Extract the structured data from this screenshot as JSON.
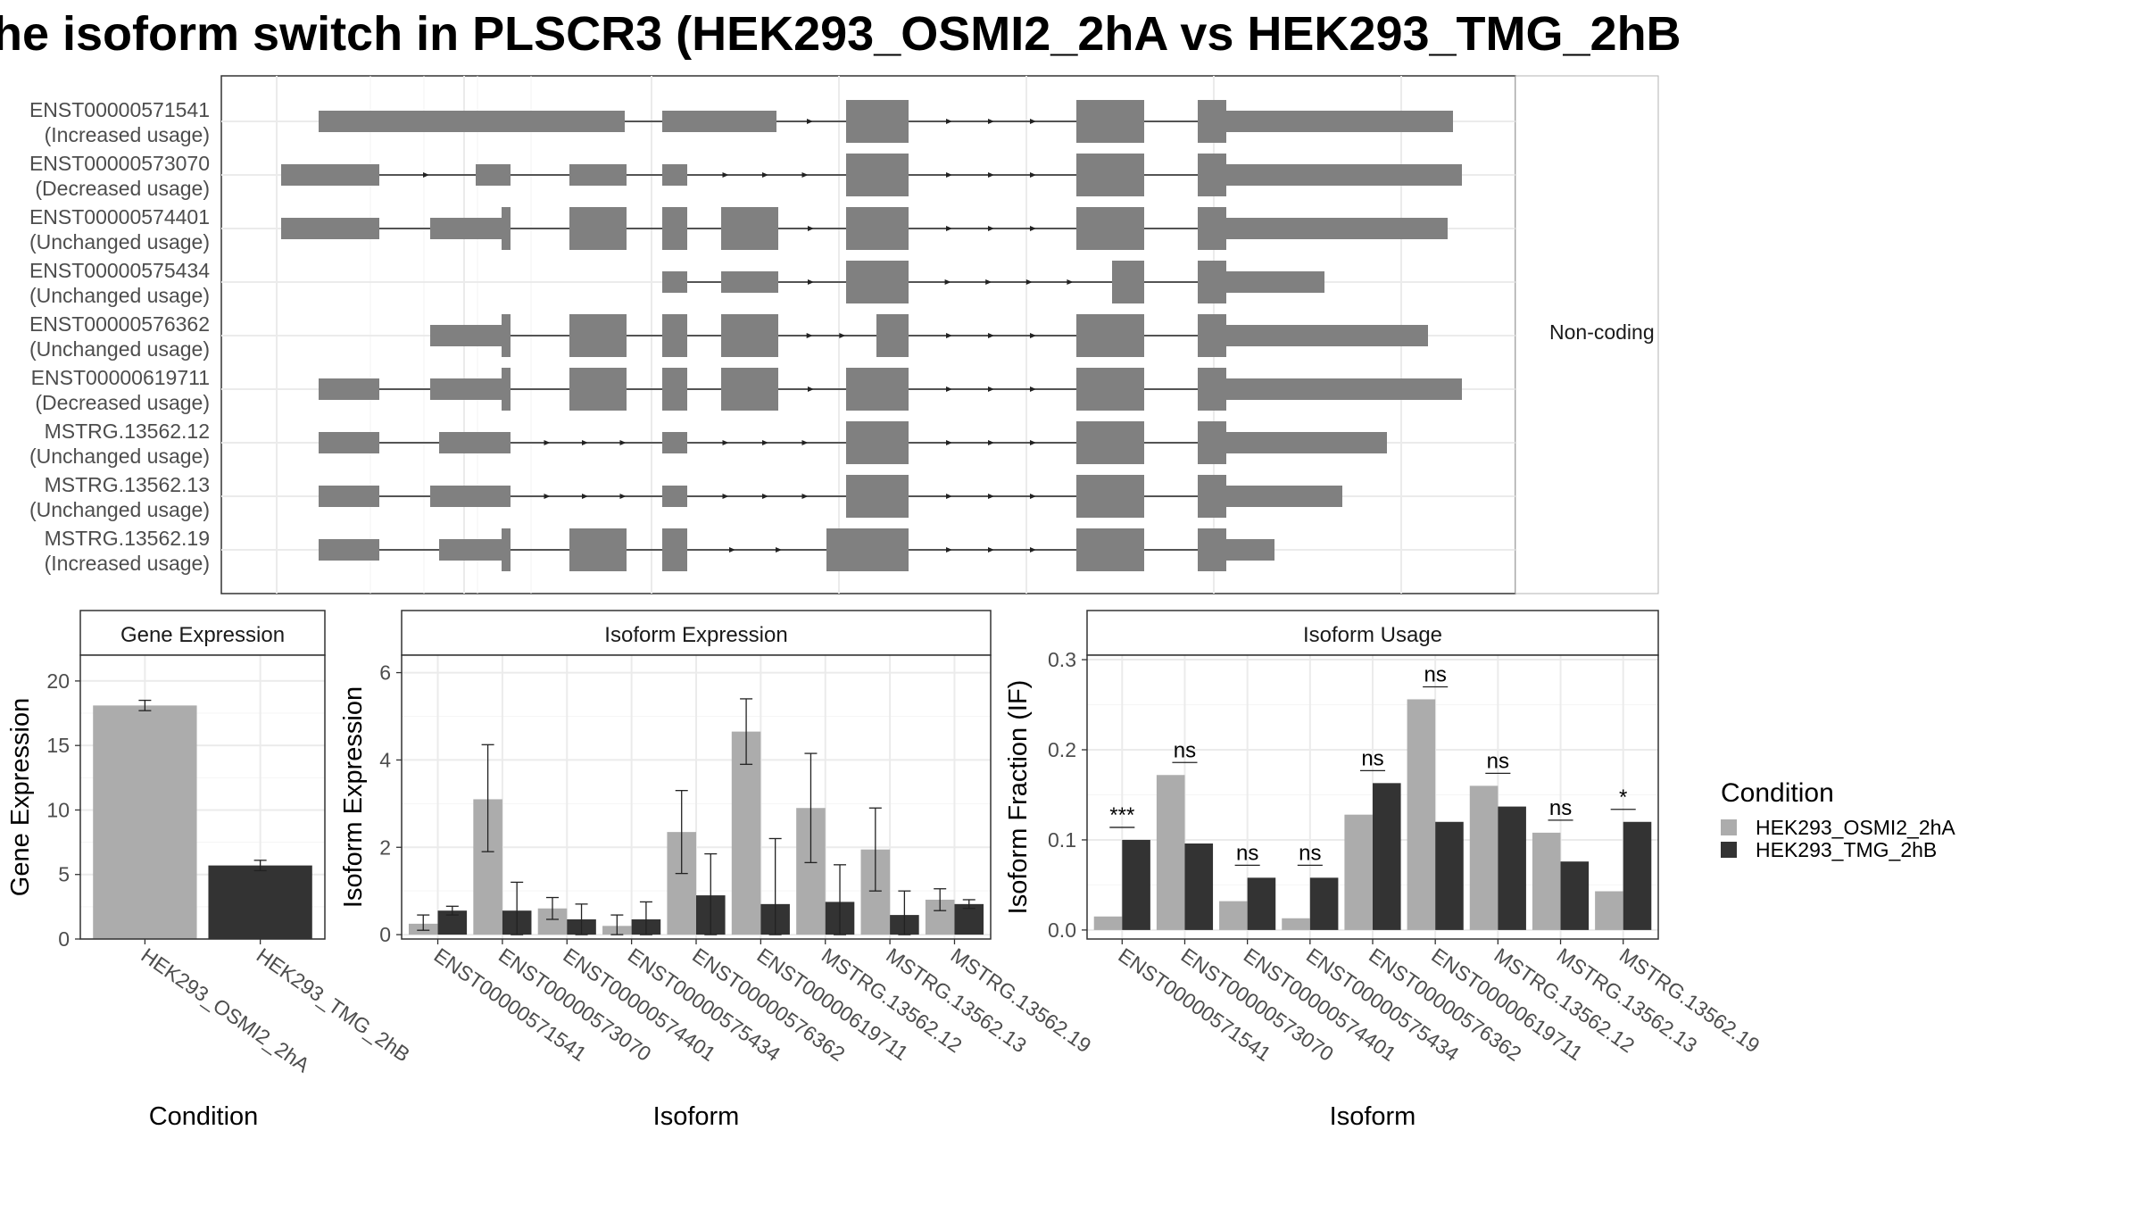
{
  "title": "he isoform switch in PLSCR3 (HEK293_OSMI2_2hA vs HEK293_TMG_2hB",
  "colors": {
    "cond_a": "#acacac",
    "cond_b": "#333333",
    "exon": "#808080",
    "panel_border": "#333333",
    "grid": "#ebebeb"
  },
  "transcript_panel": {
    "strip_label": "Non-coding",
    "isoforms": [
      {
        "id": "ENST00000571541",
        "usage": "(Increased usage)"
      },
      {
        "id": "ENST00000573070",
        "usage": "(Decreased usage)"
      },
      {
        "id": "ENST00000574401",
        "usage": "(Unchanged usage)"
      },
      {
        "id": "ENST00000575434",
        "usage": "(Unchanged usage)"
      },
      {
        "id": "ENST00000576362",
        "usage": "(Unchanged usage)"
      },
      {
        "id": "ENST00000619711",
        "usage": "(Decreased usage)"
      },
      {
        "id": "MSTRG.13562.12",
        "usage": "(Unchanged usage)"
      },
      {
        "id": "MSTRG.13562.13",
        "usage": "(Unchanged usage)"
      },
      {
        "id": "MSTRG.13562.19",
        "usage": "(Increased usage)"
      }
    ]
  },
  "legend": {
    "title": "Condition",
    "items": [
      "HEK293_OSMI2_2hA",
      "HEK293_TMG_2hB"
    ]
  },
  "chart_data": [
    {
      "type": "bar",
      "title": "Gene Expression",
      "xlabel": "Condition",
      "ylabel": "Gene Expression",
      "categories": [
        "HEK293_OSMI2_2hA",
        "HEK293_TMG_2hB"
      ],
      "values": [
        18.1,
        5.7
      ],
      "error_low": [
        17.7,
        5.3
      ],
      "error_high": [
        18.5,
        6.1
      ],
      "ylim": [
        0,
        22
      ],
      "yticks": [
        0,
        5,
        10,
        15,
        20
      ],
      "ytick_labels": [
        "0",
        "5",
        "10",
        "15",
        "20"
      ]
    },
    {
      "type": "bar",
      "title": "Isoform Expression",
      "xlabel": "Isoform",
      "ylabel": "Isoform Expression",
      "categories": [
        "ENST00000571541",
        "ENST00000573070",
        "ENST00000574401",
        "ENST00000575434",
        "ENST00000576362",
        "ENST00000619711",
        "MSTRG.13562.12",
        "MSTRG.13562.13",
        "MSTRG.13562.19"
      ],
      "series": [
        {
          "name": "HEK293_OSMI2_2hA",
          "values": [
            0.25,
            3.1,
            0.6,
            0.2,
            2.35,
            4.65,
            2.9,
            1.95,
            0.8
          ],
          "error_low": [
            0.1,
            1.9,
            0.35,
            0.0,
            1.4,
            3.9,
            1.65,
            1.0,
            0.55
          ],
          "error_high": [
            0.45,
            4.35,
            0.85,
            0.45,
            3.3,
            5.4,
            4.15,
            2.9,
            1.05
          ]
        },
        {
          "name": "HEK293_TMG_2hB",
          "values": [
            0.55,
            0.55,
            0.35,
            0.35,
            0.9,
            0.7,
            0.75,
            0.45,
            0.7
          ],
          "error_low": [
            0.45,
            0.0,
            0.0,
            0.0,
            0.0,
            0.0,
            0.0,
            0.0,
            0.6
          ],
          "error_high": [
            0.65,
            1.2,
            0.7,
            0.75,
            1.85,
            2.2,
            1.6,
            1.0,
            0.8
          ]
        }
      ],
      "ylim": [
        -0.1,
        6.4
      ],
      "yticks": [
        0,
        2,
        4,
        6
      ],
      "ytick_labels": [
        "0",
        "2",
        "4",
        "6"
      ]
    },
    {
      "type": "bar",
      "title": "Isoform Usage",
      "xlabel": "Isoform",
      "ylabel": "Isoform Fraction (IF)",
      "categories": [
        "ENST00000571541",
        "ENST00000573070",
        "ENST00000574401",
        "ENST00000575434",
        "ENST00000576362",
        "ENST00000619711",
        "MSTRG.13562.12",
        "MSTRG.13562.13",
        "MSTRG.13562.19"
      ],
      "series": [
        {
          "name": "HEK293_OSMI2_2hA",
          "values": [
            0.015,
            0.172,
            0.032,
            0.013,
            0.128,
            0.256,
            0.16,
            0.108,
            0.043
          ]
        },
        {
          "name": "HEK293_TMG_2hB",
          "values": [
            0.1,
            0.096,
            0.058,
            0.058,
            0.163,
            0.12,
            0.137,
            0.076,
            0.12
          ]
        }
      ],
      "significance": [
        "***",
        "ns",
        "ns",
        "ns",
        "ns",
        "ns",
        "ns",
        "ns",
        "*"
      ],
      "ylim": [
        -0.01,
        0.305
      ],
      "yticks": [
        0.0,
        0.1,
        0.2,
        0.3
      ],
      "ytick_labels": [
        "0.0",
        "0.1",
        "0.2",
        "0.3"
      ]
    }
  ]
}
